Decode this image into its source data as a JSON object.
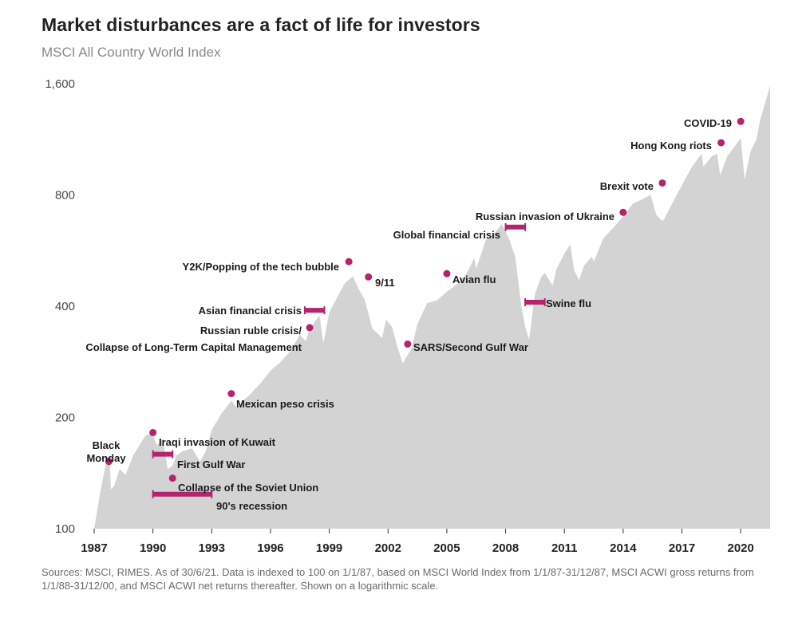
{
  "title": "Market disturbances are a fact of life for investors",
  "subtitle": "MSCI All Country World Index",
  "source": "Sources: MSCI, RIMES. As of 30/6/21. Data is indexed to 100 on 1/1/87, based on MSCI World Index from 1/1/87-31/12/87, MSCI ACWI gross returns from 1/1/88-31/12/00, and MSCI ACWI net returns thereafter. Shown on a logarithmic scale.",
  "colors": {
    "area": "#d3d3d3",
    "accent": "#b5236e",
    "text": "#1a1a1a"
  },
  "chart_data": {
    "type": "area",
    "y_scale": "log",
    "ylim": [
      100,
      1600
    ],
    "xlim": [
      1987,
      2021.5
    ],
    "y_ticks": [
      {
        "value": 100,
        "label": "100"
      },
      {
        "value": 200,
        "label": "200"
      },
      {
        "value": 400,
        "label": "400"
      },
      {
        "value": 800,
        "label": "800"
      },
      {
        "value": 1600,
        "label": "1,600"
      }
    ],
    "x_ticks": [
      {
        "value": 1987,
        "label": "1987"
      },
      {
        "value": 1990,
        "label": "1990"
      },
      {
        "value": 1993,
        "label": "1993"
      },
      {
        "value": 1996,
        "label": "1996"
      },
      {
        "value": 1999,
        "label": "1999"
      },
      {
        "value": 2002,
        "label": "2002"
      },
      {
        "value": 2005,
        "label": "2005"
      },
      {
        "value": 2008,
        "label": "2008"
      },
      {
        "value": 2011,
        "label": "2011"
      },
      {
        "value": 2014,
        "label": "2014"
      },
      {
        "value": 2017,
        "label": "2017"
      },
      {
        "value": 2020,
        "label": "2020"
      }
    ],
    "series": [
      {
        "x": [
          1987.0,
          1987.3,
          1987.6,
          1987.8,
          1987.85,
          1988.0,
          1988.3,
          1988.6,
          1989.0,
          1989.3,
          1989.6,
          1989.95,
          1990.2,
          1990.5,
          1990.75,
          1991.0,
          1991.2,
          1991.5,
          1992.0,
          1992.4,
          1992.7,
          1993.0,
          1993.5,
          1994.0,
          1994.3,
          1994.6,
          1995.0,
          1995.5,
          1996.0,
          1996.5,
          1997.0,
          1997.5,
          1997.8,
          1998.0,
          1998.5,
          1998.7,
          1998.75,
          1999.0,
          1999.5,
          1999.8,
          2000.2,
          2000.5,
          2000.8,
          2001.2,
          2001.7,
          2001.9,
          2002.2,
          2002.5,
          2002.75,
          2003.2,
          2003.5,
          2004.0,
          2004.5,
          2005.0,
          2005.5,
          2006.0,
          2006.4,
          2006.5,
          2007.0,
          2007.5,
          2007.8,
          2008.2,
          2008.5,
          2008.8,
          2009.0,
          2009.2,
          2009.5,
          2009.8,
          2010.0,
          2010.4,
          2010.6,
          2011.0,
          2011.3,
          2011.5,
          2011.75,
          2012.0,
          2012.4,
          2012.5,
          2013.0,
          2013.5,
          2014.0,
          2014.5,
          2015.0,
          2015.4,
          2015.7,
          2016.0,
          2016.1,
          2016.5,
          2017.0,
          2017.5,
          2018.0,
          2018.1,
          2018.5,
          2018.8,
          2018.95,
          2019.3,
          2019.7,
          2020.0,
          2020.2,
          2020.5,
          2020.8,
          2021.0,
          2021.2,
          2021.5
        ],
        "values": [
          100,
          125,
          150,
          152,
          128,
          130,
          145,
          140,
          158,
          168,
          178,
          182,
          168,
          175,
          145,
          148,
          158,
          162,
          165,
          152,
          162,
          185,
          205,
          222,
          212,
          222,
          232,
          248,
          268,
          282,
          302,
          335,
          322,
          348,
          378,
          318,
          328,
          385,
          432,
          462,
          482,
          445,
          418,
          348,
          328,
          368,
          352,
          308,
          280,
          308,
          358,
          408,
          415,
          438,
          458,
          490,
          540,
          505,
          605,
          635,
          668,
          605,
          542,
          402,
          352,
          325,
          432,
          478,
          492,
          455,
          505,
          555,
          588,
          500,
          470,
          515,
          545,
          528,
          612,
          652,
          700,
          758,
          780,
          800,
          705,
          680,
          690,
          758,
          850,
          952,
          1035,
          955,
          1015,
          1035,
          905,
          1015,
          1085,
          1140,
          880,
          1050,
          1130,
          1280,
          1390,
          1580
        ]
      }
    ],
    "annotations": [
      {
        "label": "Black Monday",
        "lines": [
          "Black",
          "Monday"
        ],
        "kind": "point",
        "x": 1987.75,
        "y": 152
      },
      {
        "label": "Iraqi invasion of Kuwait",
        "kind": "point",
        "x": 1990.0,
        "y": 182
      },
      {
        "label": "First Gulf War",
        "kind": "range",
        "x_start": 1990.0,
        "x_end": 1991.0,
        "y": 159
      },
      {
        "label": "Collapse of the Soviet Union",
        "kind": "point",
        "x": 1991.0,
        "y": 137
      },
      {
        "label": "90's recession",
        "kind": "range",
        "x_start": 1990.0,
        "x_end": 1993.0,
        "y": 124
      },
      {
        "label": "Mexican peso crisis",
        "kind": "point",
        "x": 1994.0,
        "y": 232
      },
      {
        "label": "Asian financial crisis",
        "kind": "range",
        "x_start": 1997.75,
        "x_end": 1998.75,
        "y": 390
      },
      {
        "label": "Russian ruble crisis/",
        "kind": "point",
        "x": 1998.0,
        "y": 350
      },
      {
        "label": "Collapse of Long-Term Capital Management",
        "kind": "text",
        "x": 1998.0,
        "y": 315
      },
      {
        "label": "Y2K/Popping of the tech bubble",
        "kind": "point",
        "x": 2000.0,
        "y": 528
      },
      {
        "label": "9/11",
        "kind": "point",
        "x": 2001.0,
        "y": 480
      },
      {
        "label": "Avian flu",
        "kind": "point",
        "x": 2005.0,
        "y": 490
      },
      {
        "label": "SARS/Second Gulf War",
        "kind": "point",
        "x": 2003.0,
        "y": 316
      },
      {
        "label": "Global financial crisis",
        "kind": "range",
        "x_start": 2008.0,
        "x_end": 2009.0,
        "y": 655
      },
      {
        "label": "Swine flu",
        "kind": "range",
        "x_start": 2009.0,
        "x_end": 2010.0,
        "y": 410
      },
      {
        "label": "Russian invasion of Ukraine",
        "kind": "point",
        "x": 2014.0,
        "y": 718
      },
      {
        "label": "Brexit vote",
        "kind": "point",
        "x": 2016.0,
        "y": 862
      },
      {
        "label": "Hong Kong riots",
        "kind": "point",
        "x": 2019.0,
        "y": 1108
      },
      {
        "label": "COVID-19",
        "kind": "point",
        "x": 2020.0,
        "y": 1265
      }
    ]
  }
}
